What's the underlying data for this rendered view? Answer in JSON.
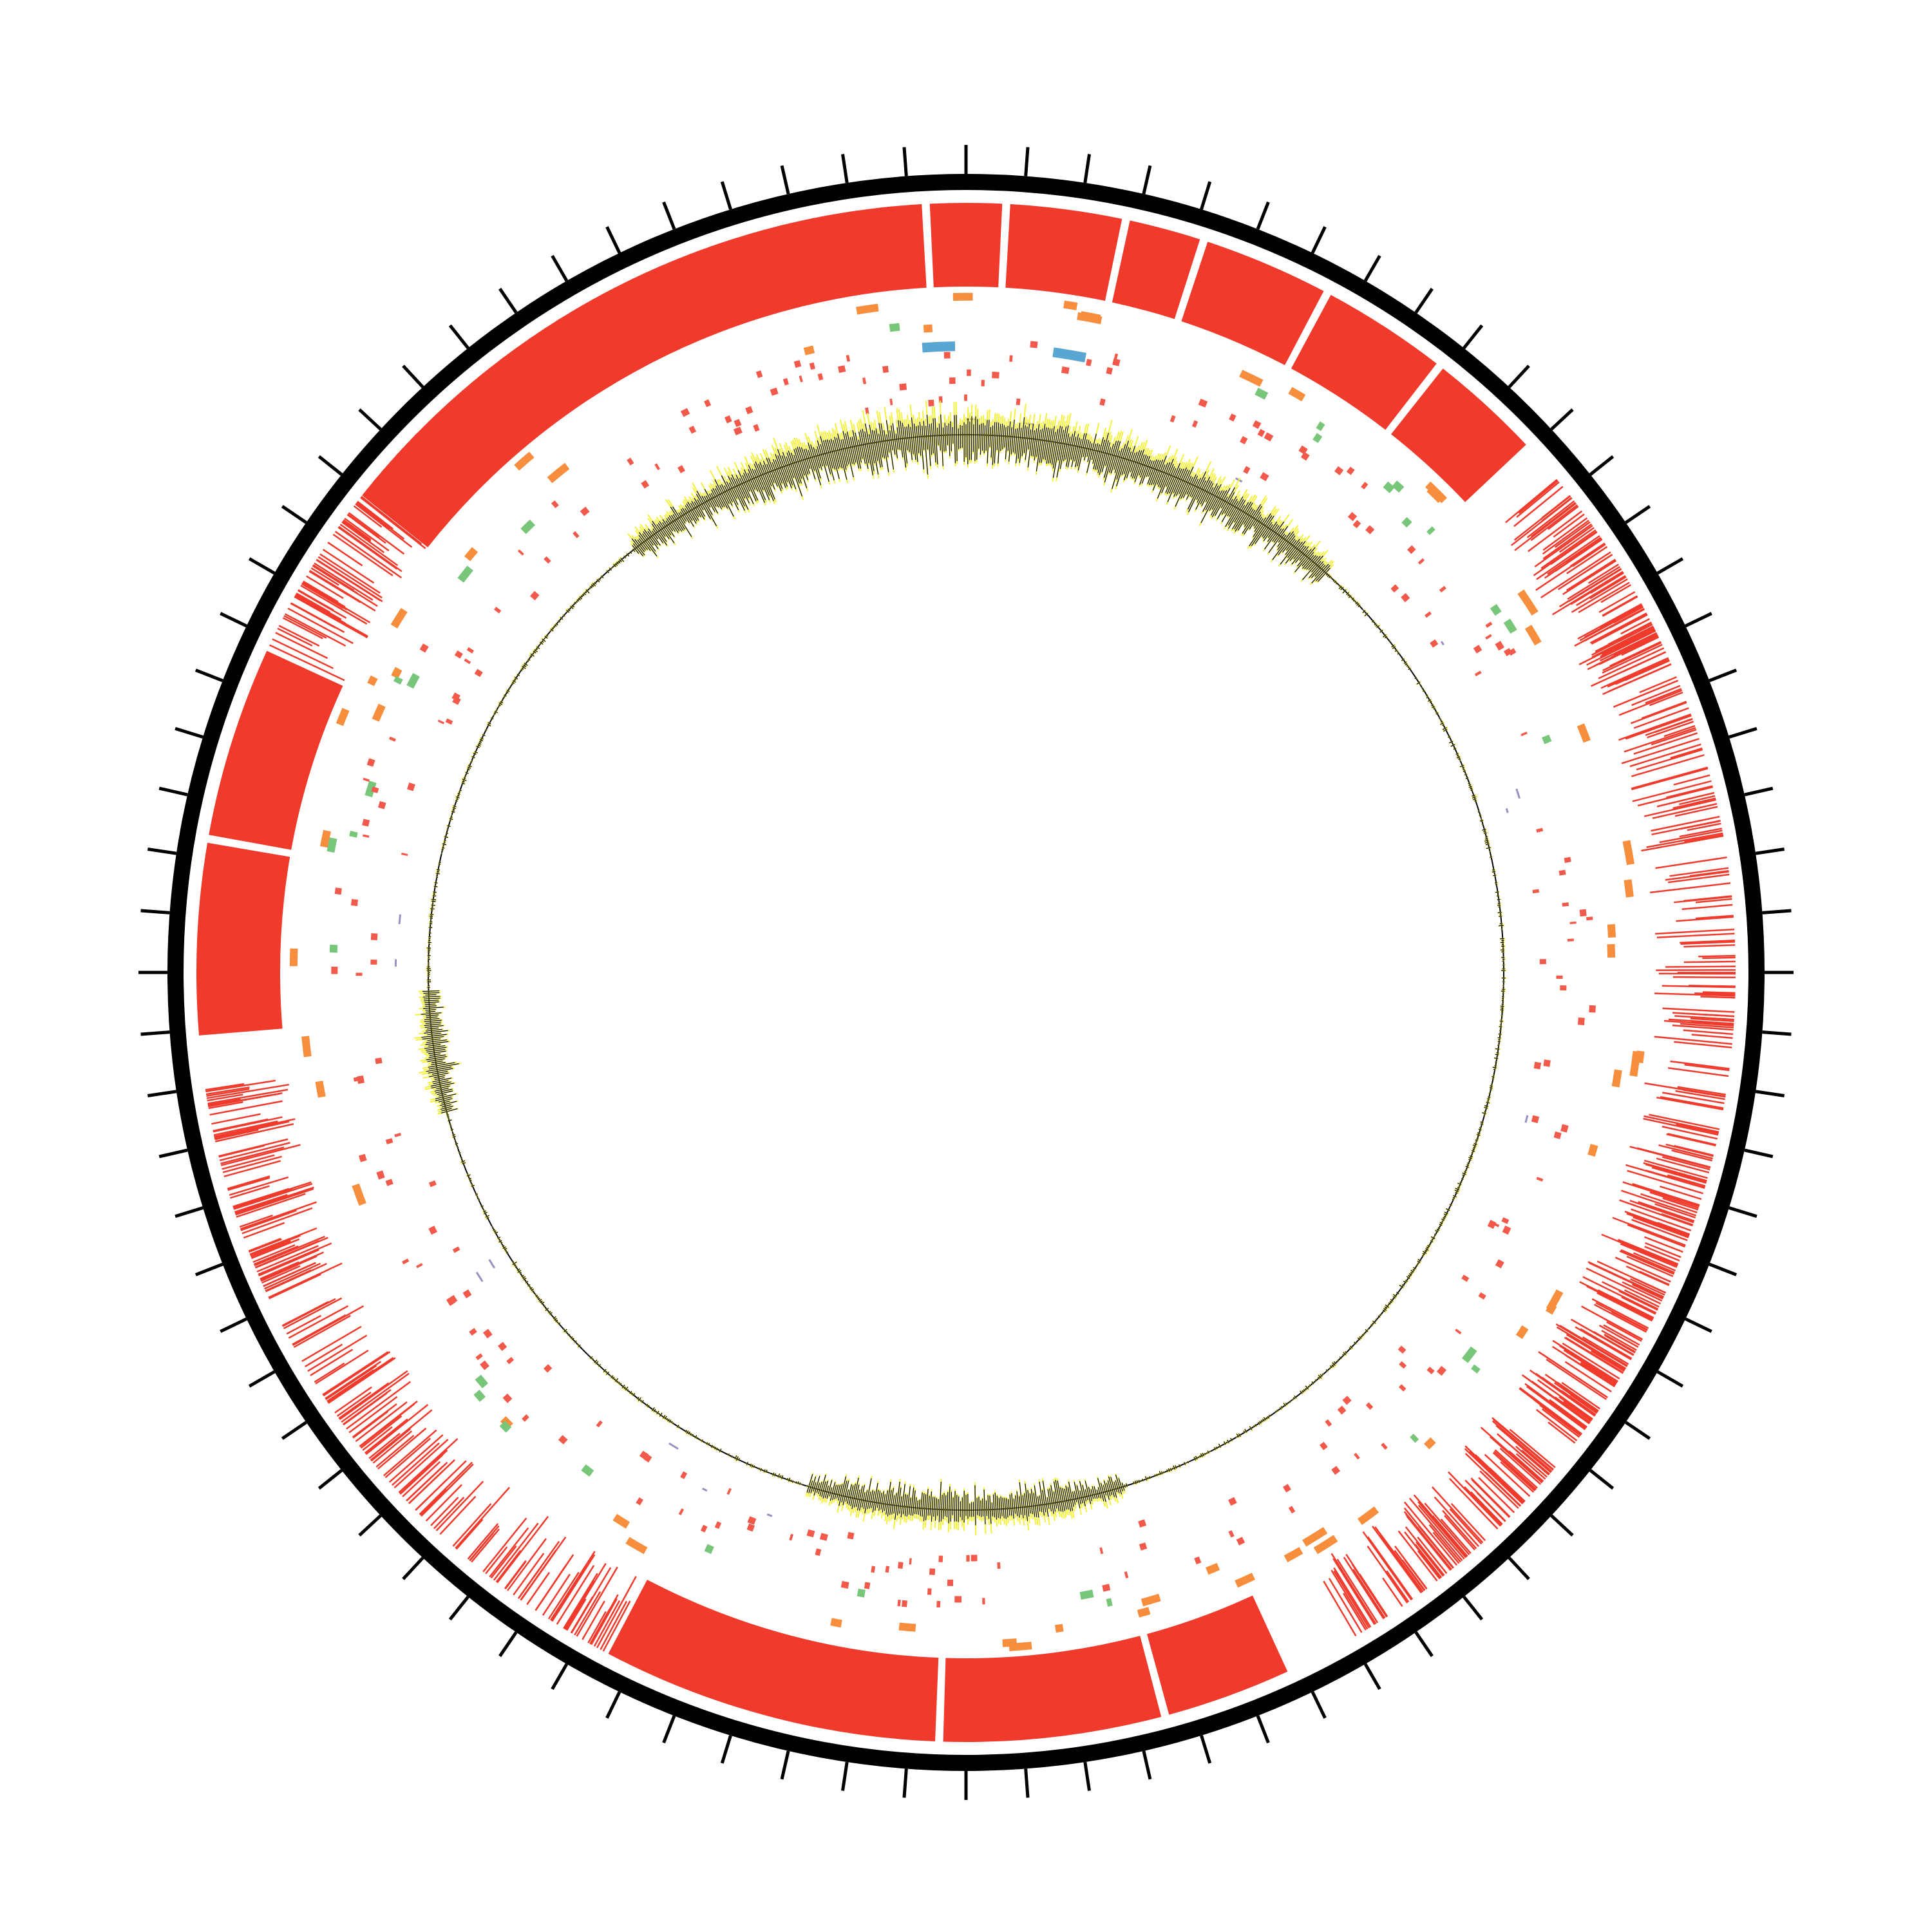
{
  "colors": {
    "background": "#ffffff",
    "ideogram": "#000000",
    "tick": "#000000",
    "density": "#ef3a2c",
    "feature_red": "#f15a4a",
    "feature_orange": "#f78e3d",
    "feature_green": "#78c679",
    "feature_blue": "#5aa6d2",
    "feature_purple": "#9a8fc0",
    "signal_fill": "#f5f03a",
    "signal_line": "#000000",
    "baseline": "#000000"
  },
  "ideogram": {
    "tick_count": 84,
    "major_every": 1
  },
  "tracks": [
    {
      "name": "dense-blocks",
      "color_key": "density",
      "blocks": [
        [
          -52,
          -3
        ],
        [
          -3,
          3
        ],
        [
          3,
          12
        ],
        [
          12,
          18
        ],
        [
          18,
          28
        ],
        [
          28,
          38
        ],
        [
          38,
          47
        ],
        [
          155,
          165
        ],
        [
          165,
          182
        ],
        [
          182,
          208
        ],
        [
          265,
          280
        ],
        [
          280,
          295
        ]
      ]
    },
    {
      "name": "line-clusters",
      "color_key": "density",
      "clusters": [
        [
          50,
          70,
          0.9
        ],
        [
          70,
          100,
          0.5
        ],
        [
          100,
          128,
          0.9
        ],
        [
          130,
          150,
          0.8
        ],
        [
          208,
          250,
          0.6
        ],
        [
          250,
          262,
          0.7
        ],
        [
          295,
          335,
          0.8
        ],
        [
          335,
          355,
          0.6
        ]
      ]
    },
    {
      "name": "orange-ticks",
      "color_key": "feature_orange",
      "density": 55
    },
    {
      "name": "green-ticks",
      "color_key": "feature_green",
      "density": 30
    },
    {
      "name": "red-small-ticks",
      "color_key": "feature_red",
      "density": 220
    },
    {
      "name": "blue-ticks",
      "color_key": "feature_blue",
      "arcs": [
        [
          -4,
          -1
        ],
        [
          8,
          11
        ]
      ]
    },
    {
      "name": "purple-ticks",
      "color_key": "feature_purple",
      "density": 14
    }
  ],
  "signal": {
    "peaks": [
      [
        -38,
        42,
        1.0
      ],
      [
        163,
        197,
        0.75
      ],
      [
        255,
        268,
        0.6
      ]
    ],
    "noise_level": 0.08
  }
}
